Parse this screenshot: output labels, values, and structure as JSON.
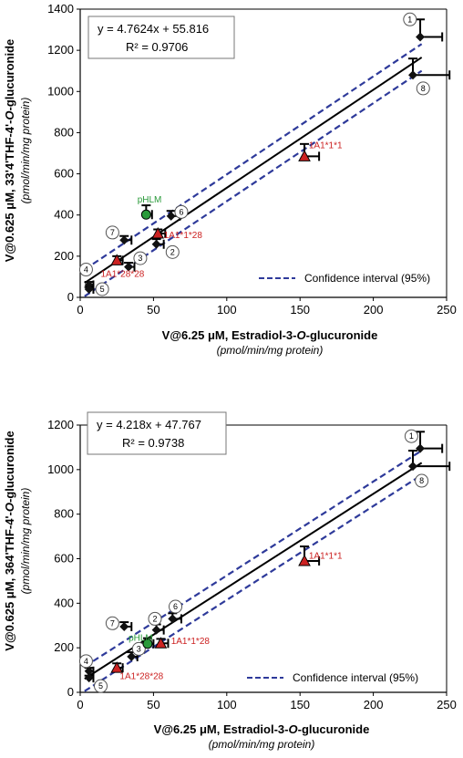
{
  "colors": {
    "fit": "#000000",
    "ci": "#2e3a9a",
    "genotype_label": "#cc2222",
    "hlm_label": "#2a9a3a",
    "genotype_marker": "#cc2222",
    "hlm_marker": "#2a9a3a",
    "allele_marker": "#1f3a8a",
    "variant_marker": "#111111"
  },
  "chart_data": [
    {
      "type": "scatter",
      "equation": "y = 4.7624x + 55.816",
      "r2": "R² = 0.9706",
      "fit": {
        "slope": 4.7624,
        "intercept": 55.816
      },
      "ci_halfwidth": 65,
      "legend": "Confidence interval (95%)",
      "legend_position": "bottom-right",
      "xlabel_pre": "V@6.25 ",
      "xlabel_mu": "μ",
      "xlabel_post": "M, Estradiol-3-",
      "xlabel_o": "O",
      "xlabel_end": "-glucuronide",
      "xsub": "(pmol/min/mg protein)",
      "ylabel_pre": "V@0.625 ",
      "ylabel_mu": "μ",
      "ylabel_post": "M, 33'4'THF-4'-",
      "ylabel_o": "O",
      "ylabel_end": "-glucuronide",
      "ysub": "(pmol/min/mg protein)",
      "xlim": [
        0,
        250
      ],
      "ylim": [
        0,
        1400
      ],
      "xticks": [
        "0",
        "50",
        "100",
        "150",
        "200",
        "250"
      ],
      "yticks": [
        "0",
        "200",
        "400",
        "600",
        "800",
        "1000",
        "1200",
        "1400"
      ],
      "points": [
        {
          "id": "1",
          "x": 232,
          "y": 1265,
          "xerr": 15,
          "yerr": 85,
          "kind": "variant",
          "num": "1",
          "lx": 225,
          "ly": 1350
        },
        {
          "id": "8",
          "x": 227,
          "y": 1080,
          "xerr": 25,
          "yerr": 80,
          "kind": "variant",
          "num": "8",
          "lx": 234,
          "ly": 1015
        },
        {
          "id": "2",
          "x": 52,
          "y": 258,
          "xerr": 5,
          "yerr": 25,
          "kind": "variant",
          "num": "2",
          "lx": 63,
          "ly": 220
        },
        {
          "id": "3",
          "x": 33,
          "y": 148,
          "xerr": 4,
          "yerr": 20,
          "kind": "variant",
          "num": "3",
          "lx": 41,
          "ly": 190
        },
        {
          "id": "4",
          "x": 6,
          "y": 60,
          "xerr": 3,
          "yerr": 15,
          "kind": "variant",
          "num": "4",
          "lx": 4,
          "ly": 135
        },
        {
          "id": "5",
          "x": 6,
          "y": 40,
          "xerr": 3,
          "yerr": 10,
          "kind": "variant",
          "num": "5",
          "lx": 15,
          "ly": 40
        },
        {
          "id": "6",
          "x": 62,
          "y": 395,
          "xerr": 6,
          "yerr": 25,
          "kind": "variant",
          "num": "6",
          "lx": 69,
          "ly": 415
        },
        {
          "id": "7",
          "x": 30,
          "y": 278,
          "xerr": 5,
          "yerr": 20,
          "kind": "variant",
          "num": "7",
          "lx": 22,
          "ly": 315
        },
        {
          "id": "pHLM",
          "x": 45,
          "y": 402,
          "xerr": 4,
          "yerr": 45,
          "kind": "hlm",
          "text": "pHLM",
          "lx": 39,
          "ly": 460
        },
        {
          "id": "1A1*1*1",
          "x": 153,
          "y": 685,
          "xerr": 10,
          "yerr": 60,
          "kind": "genotype",
          "text": "1A1*1*1",
          "lx": 156,
          "ly": 725
        },
        {
          "id": "1A1*1*28",
          "x": 53,
          "y": 310,
          "xerr": 5,
          "yerr": 20,
          "kind": "genotype",
          "text": "1A1*1*28",
          "lx": 57,
          "ly": 288
        },
        {
          "id": "1A1*28*28",
          "x": 25,
          "y": 180,
          "xerr": 4,
          "yerr": 20,
          "kind": "genotype",
          "text": "1A1*28*28",
          "lx": 14,
          "ly": 100
        }
      ]
    },
    {
      "type": "scatter",
      "equation": "y = 4.218x + 47.767",
      "r2": "R² = 0.9738",
      "fit": {
        "slope": 4.218,
        "intercept": 47.767
      },
      "ci_halfwidth": 55,
      "legend": "Confidence interval (95%)",
      "legend_position": "bottom-right",
      "xlabel_pre": "V@6.25 ",
      "xlabel_mu": "μ",
      "xlabel_post": "M, Estradiol-3-",
      "xlabel_o": "O",
      "xlabel_end": "-glucuronide",
      "xsub": "(pmol/min/mg protein)",
      "ylabel_pre": "V@0.625 ",
      "ylabel_mu": "μ",
      "ylabel_post": "M, 364'THF-4'-",
      "ylabel_o": "O",
      "ylabel_end": "-glucuronide",
      "ysub": "(pmol/min/mg protein)",
      "xlim": [
        0,
        250
      ],
      "ylim": [
        0,
        1200
      ],
      "xticks": [
        "0",
        "50",
        "100",
        "150",
        "200",
        "250"
      ],
      "yticks": [
        "0",
        "200",
        "400",
        "600",
        "800",
        "1000",
        "1200"
      ],
      "points": [
        {
          "id": "1",
          "x": 232,
          "y": 1095,
          "xerr": 15,
          "yerr": 75,
          "kind": "variant",
          "num": "1",
          "lx": 226,
          "ly": 1150
        },
        {
          "id": "8",
          "x": 227,
          "y": 1015,
          "xerr": 25,
          "yerr": 70,
          "kind": "variant",
          "num": "8",
          "lx": 233,
          "ly": 950
        },
        {
          "id": "2",
          "x": 52,
          "y": 280,
          "xerr": 5,
          "yerr": 25,
          "kind": "variant",
          "num": "2",
          "lx": 51,
          "ly": 330
        },
        {
          "id": "3",
          "x": 35,
          "y": 160,
          "xerr": 4,
          "yerr": 20,
          "kind": "variant",
          "num": "3",
          "lx": 40,
          "ly": 195
        },
        {
          "id": "4",
          "x": 6,
          "y": 95,
          "xerr": 3,
          "yerr": 15,
          "kind": "variant",
          "num": "4",
          "lx": 4,
          "ly": 140
        },
        {
          "id": "5",
          "x": 6,
          "y": 65,
          "xerr": 3,
          "yerr": 10,
          "kind": "variant",
          "num": "5",
          "lx": 14,
          "ly": 28
        },
        {
          "id": "6",
          "x": 63,
          "y": 330,
          "xerr": 6,
          "yerr": 25,
          "kind": "variant",
          "num": "6",
          "lx": 65,
          "ly": 385
        },
        {
          "id": "7",
          "x": 30,
          "y": 295,
          "xerr": 5,
          "yerr": 20,
          "kind": "variant",
          "num": "7",
          "lx": 22,
          "ly": 310
        },
        {
          "id": "pHLM",
          "x": 46,
          "y": 218,
          "xerr": 4,
          "yerr": 25,
          "kind": "hlm",
          "text": "pHLM",
          "lx": 33,
          "ly": 232
        },
        {
          "id": "1A1*1*1",
          "x": 153,
          "y": 590,
          "xerr": 10,
          "yerr": 65,
          "kind": "genotype",
          "text": "1A1*1*1",
          "lx": 156,
          "ly": 600
        },
        {
          "id": "1A1*1*28",
          "x": 55,
          "y": 220,
          "xerr": 5,
          "yerr": 20,
          "kind": "genotype",
          "text": "1A1*1*28",
          "lx": 62,
          "ly": 218
        },
        {
          "id": "1A1*28*28",
          "x": 25,
          "y": 110,
          "xerr": 4,
          "yerr": 20,
          "kind": "genotype",
          "text": "1A1*28*28",
          "lx": 27,
          "ly": 60
        }
      ]
    }
  ]
}
